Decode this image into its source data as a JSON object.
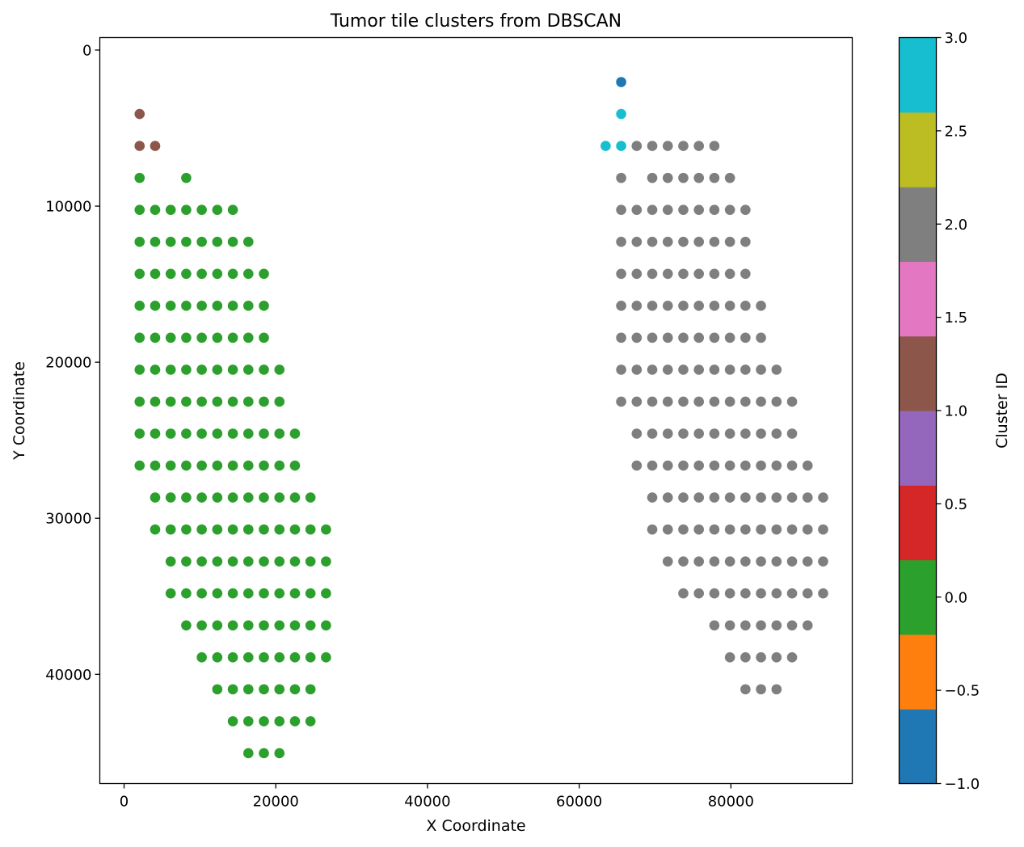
{
  "chart_data": {
    "type": "scatter",
    "title": "Tumor tile clusters from DBSCAN",
    "xlabel": "X Coordinate",
    "ylabel": "Y Coordinate",
    "xlim": [
      -3200,
      96000
    ],
    "ylim": [
      47000,
      -800
    ],
    "y_inverted": true,
    "grid": false,
    "xticks": [
      0,
      20000,
      40000,
      60000,
      80000
    ],
    "xtick_labels": [
      "0",
      "20000",
      "40000",
      "60000",
      "80000"
    ],
    "yticks": [
      0,
      10000,
      20000,
      30000,
      40000
    ],
    "ytick_labels": [
      "0",
      "10000",
      "20000",
      "30000",
      "40000"
    ],
    "colorbar": {
      "label": "Cluster ID",
      "range": [
        -1.0,
        3.0
      ],
      "ticks": [
        -1.0,
        -0.5,
        0.0,
        0.5,
        1.0,
        1.5,
        2.0,
        2.5,
        3.0
      ],
      "tick_labels": [
        "−1.0",
        "−0.5",
        "0.0",
        "0.5",
        "1.0",
        "1.5",
        "2.0",
        "2.5",
        "3.0"
      ],
      "colors": [
        "#1f77b4",
        "#ff7f0e",
        "#2ca02c",
        "#d62728",
        "#9467bd",
        "#8c564b",
        "#e377c2",
        "#7f7f7f",
        "#bcbd22",
        "#17becf"
      ]
    },
    "cluster_colors": {
      "-1": "#1f77b4",
      "0": "#2ca02c",
      "1": "#8c564b",
      "2": "#7f7f7f",
      "3": "#17becf"
    },
    "grid_step": 2048,
    "points_cluster0_row_ranges": [
      {
        "y": 8192,
        "x": [
          2048
        ]
      },
      {
        "y": 8192,
        "x": [
          8192
        ]
      },
      {
        "y": 10240,
        "range": [
          2048,
          14336
        ]
      },
      {
        "y": 12288,
        "range": [
          2048,
          16384
        ]
      },
      {
        "y": 14336,
        "range": [
          2048,
          18432
        ]
      },
      {
        "y": 16384,
        "range": [
          2048,
          18432
        ]
      },
      {
        "y": 18432,
        "range": [
          2048,
          18432
        ]
      },
      {
        "y": 20480,
        "range": [
          2048,
          20480
        ]
      },
      {
        "y": 22528,
        "range": [
          2048,
          20480
        ]
      },
      {
        "y": 24576,
        "range": [
          2048,
          22528
        ]
      },
      {
        "y": 26624,
        "range": [
          2048,
          22528
        ]
      },
      {
        "y": 28672,
        "range": [
          4096,
          24576
        ]
      },
      {
        "y": 30720,
        "range": [
          4096,
          26624
        ]
      },
      {
        "y": 32768,
        "range": [
          6144,
          26624
        ]
      },
      {
        "y": 34816,
        "range": [
          6144,
          26624
        ]
      },
      {
        "y": 36864,
        "range": [
          8192,
          26624
        ]
      },
      {
        "y": 38912,
        "range": [
          10240,
          26624
        ]
      },
      {
        "y": 40960,
        "range": [
          12288,
          24576
        ]
      },
      {
        "y": 43008,
        "range": [
          14336,
          24576
        ]
      },
      {
        "y": 45056,
        "range": [
          16384,
          20480
        ]
      }
    ],
    "points_cluster1": [
      [
        2048,
        4096
      ],
      [
        2048,
        6144
      ],
      [
        4096,
        6144
      ]
    ],
    "points_cluster_neg1": [
      [
        65536,
        2048
      ]
    ],
    "points_cluster3": [
      [
        65536,
        4096
      ],
      [
        63488,
        6144
      ],
      [
        65536,
        6144
      ]
    ],
    "points_cluster2_row_ranges": [
      {
        "y": 6144,
        "range": [
          67584,
          77824
        ]
      },
      {
        "y": 8192,
        "x": [
          65536
        ]
      },
      {
        "y": 8192,
        "range": [
          69632,
          79872
        ]
      },
      {
        "y": 10240,
        "range": [
          65536,
          81920
        ]
      },
      {
        "y": 12288,
        "range": [
          65536,
          81920
        ]
      },
      {
        "y": 14336,
        "range": [
          65536,
          81920
        ]
      },
      {
        "y": 16384,
        "range": [
          65536,
          83968
        ]
      },
      {
        "y": 18432,
        "range": [
          65536,
          83968
        ]
      },
      {
        "y": 20480,
        "range": [
          65536,
          86016
        ]
      },
      {
        "y": 22528,
        "range": [
          65536,
          88064
        ]
      },
      {
        "y": 24576,
        "range": [
          67584,
          88064
        ]
      },
      {
        "y": 26624,
        "range": [
          67584,
          90112
        ]
      },
      {
        "y": 28672,
        "range": [
          69632,
          92160
        ]
      },
      {
        "y": 30720,
        "range": [
          69632,
          92160
        ]
      },
      {
        "y": 32768,
        "range": [
          71680,
          92160
        ]
      },
      {
        "y": 34816,
        "range": [
          73728,
          92160
        ]
      },
      {
        "y": 36864,
        "range": [
          77824,
          90112
        ]
      },
      {
        "y": 38912,
        "range": [
          79872,
          88064
        ]
      },
      {
        "y": 40960,
        "range": [
          81920,
          86016
        ]
      }
    ]
  }
}
